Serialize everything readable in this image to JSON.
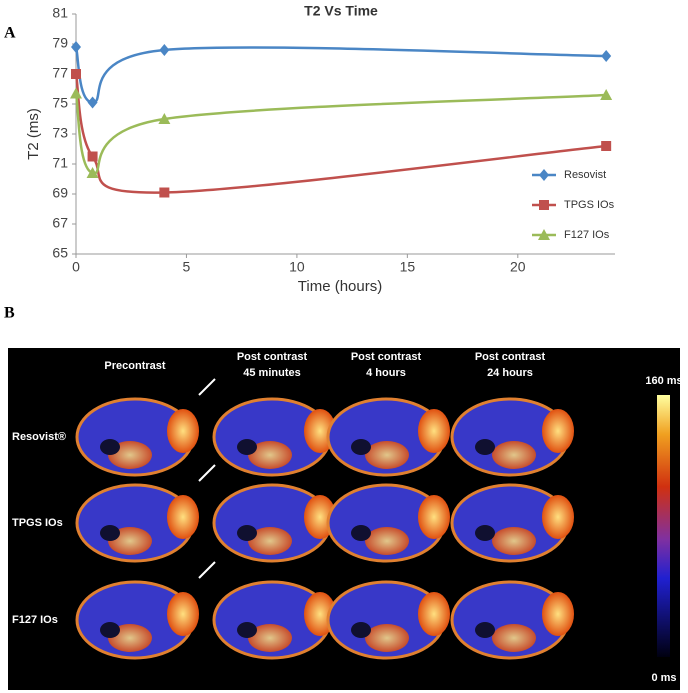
{
  "panel_labels": [
    "A",
    "B"
  ],
  "chart_data": {
    "type": "line",
    "title": "T2 Vs Time",
    "x_label": "Time (hours)",
    "y_label": "T2 (ms)",
    "x": [
      0,
      0.75,
      4,
      24
    ],
    "series": [
      {
        "name": "Resovist",
        "color": "#4a86c5",
        "marker": "diamond",
        "values": [
          78.8,
          75.1,
          78.6,
          78.2
        ]
      },
      {
        "name": "TPGS IOs",
        "color": "#c0504d",
        "marker": "square",
        "values": [
          77.0,
          71.5,
          69.1,
          72.2
        ]
      },
      {
        "name": "F127 IOs",
        "color": "#9bbb59",
        "marker": "triangle",
        "values": [
          75.7,
          70.4,
          74.0,
          75.6
        ]
      }
    ],
    "xlim": [
      0,
      24.4
    ],
    "xticks": [
      0,
      5,
      10,
      15,
      20
    ],
    "ylim": [
      65,
      81
    ],
    "yticks": [
      65,
      67,
      69,
      71,
      73,
      75,
      77,
      79,
      81
    ],
    "grid": false,
    "legend": "right",
    "smooth": true
  },
  "image_panel": {
    "columns": [
      "Precontrast",
      [
        "Post contrast",
        "45 minutes"
      ],
      [
        "Post contrast",
        "4 hours"
      ],
      [
        "Post contrast",
        "24 hours"
      ]
    ],
    "rows": [
      "Resovist®",
      "TPGS IOs",
      "F127 IOs"
    ],
    "colorbar": {
      "max_label": "160 ms",
      "min_label": "0 ms"
    }
  }
}
